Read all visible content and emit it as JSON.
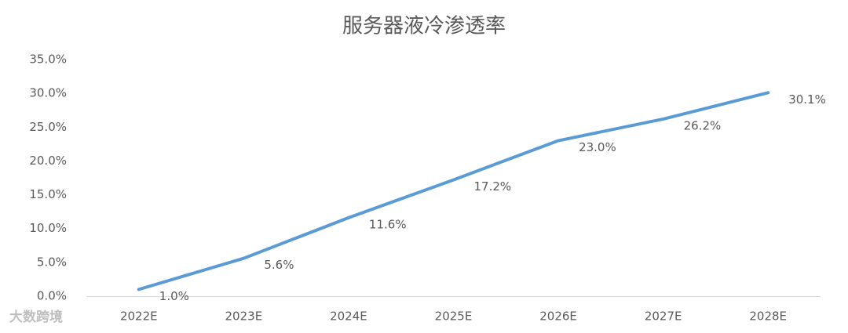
{
  "chart_data": {
    "type": "line",
    "title": "服务器液冷渗透率",
    "categories": [
      "2022E",
      "2023E",
      "2024E",
      "2025E",
      "2026E",
      "2027E",
      "2028E"
    ],
    "values": [
      1.0,
      5.6,
      11.6,
      17.2,
      23.0,
      26.2,
      30.1
    ],
    "value_labels": [
      "1.0%",
      "5.6%",
      "11.6%",
      "17.2%",
      "23.0%",
      "26.2%",
      "30.1%"
    ],
    "color": "#5b9bd5",
    "ylim": [
      0,
      35
    ],
    "yticks": [
      {
        "value": 0,
        "label": "0.0%"
      },
      {
        "value": 5,
        "label": "5.0%"
      },
      {
        "value": 10,
        "label": "10.0%"
      },
      {
        "value": 15,
        "label": "15.0%"
      },
      {
        "value": 20,
        "label": "20.0%"
      },
      {
        "value": 25,
        "label": "25.0%"
      },
      {
        "value": 30,
        "label": "30.0%"
      },
      {
        "value": 35,
        "label": "35.0%"
      }
    ],
    "grid": false,
    "watermark": "大数跨境"
  }
}
